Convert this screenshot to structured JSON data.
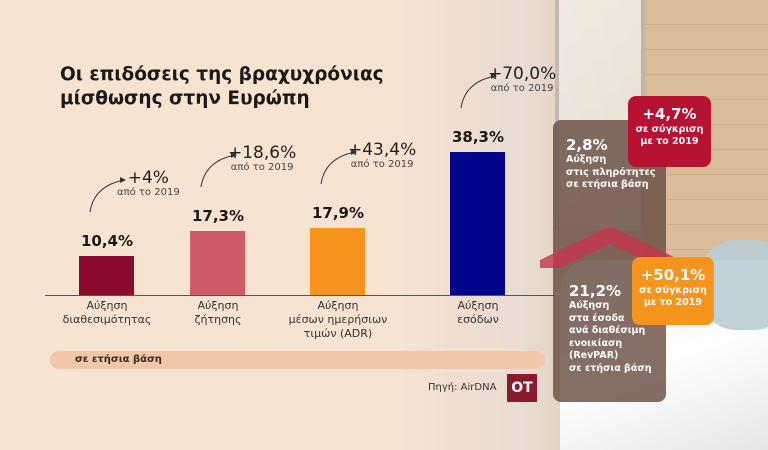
{
  "title": [
    "Οι επιδόσεις της βραχυχρόνιας",
    "μίσθωσης στην  Ευρώπη"
  ],
  "chart_data": {
    "type": "bar",
    "title": "Οι επιδόσεις της βραχυχρόνιας μίσθωσης στην  Ευρώπη",
    "categories": [
      [
        "Αύξηση",
        "διαθεσιμότητας"
      ],
      [
        "Αύξηση",
        "ζήτησης"
      ],
      [
        "Αύξηση",
        "μέσων ημερήσιων",
        "τιμών (ADR)"
      ],
      [
        "Αύξηση",
        "εσόδων"
      ]
    ],
    "values": [
      10.4,
      17.3,
      17.9,
      38.3
    ],
    "value_labels": [
      "10,4%",
      "17,3%",
      "17,9%",
      "38,3%"
    ],
    "colors": [
      "#8b0a2e",
      "#cf5b69",
      "#f7941d",
      "#00058c"
    ],
    "annotations": [
      {
        "value": "+4%",
        "note": "από το 2019"
      },
      {
        "value": "+18,6%",
        "note": "από το 2019"
      },
      {
        "value": "+43,4%",
        "note": "από το 2019"
      },
      {
        "value": "+70,0%",
        "note": "από το 2019"
      }
    ],
    "ylim": [
      0,
      40
    ],
    "grid": false,
    "xlabel": "",
    "ylabel": ""
  },
  "basis_label": "σε ετήσια βάση",
  "source": "Πηγή: AirDNA",
  "logo": "OT",
  "side_panel": {
    "occupancy": {
      "value": "2,8%",
      "lines": [
        "Αύξηση",
        "στις πληρότητες",
        "σε ετήσια βάση"
      ]
    },
    "revpar": {
      "value": "21,2%",
      "lines": [
        "Αύξηση",
        "στα έσοδα",
        "ανά διαθέσιμη",
        "ενοικίαση",
        "(RevPAR)",
        "σε ετήσια βάση"
      ]
    },
    "callout_red": {
      "value": "+4,7%",
      "lines": [
        "σε σύγκριση",
        "με το 2019"
      ],
      "color": "#b81233"
    },
    "callout_orange": {
      "value": "+50,1%",
      "lines": [
        "σε σύγκριση",
        "με το 2019"
      ],
      "color": "#f7941d"
    }
  }
}
